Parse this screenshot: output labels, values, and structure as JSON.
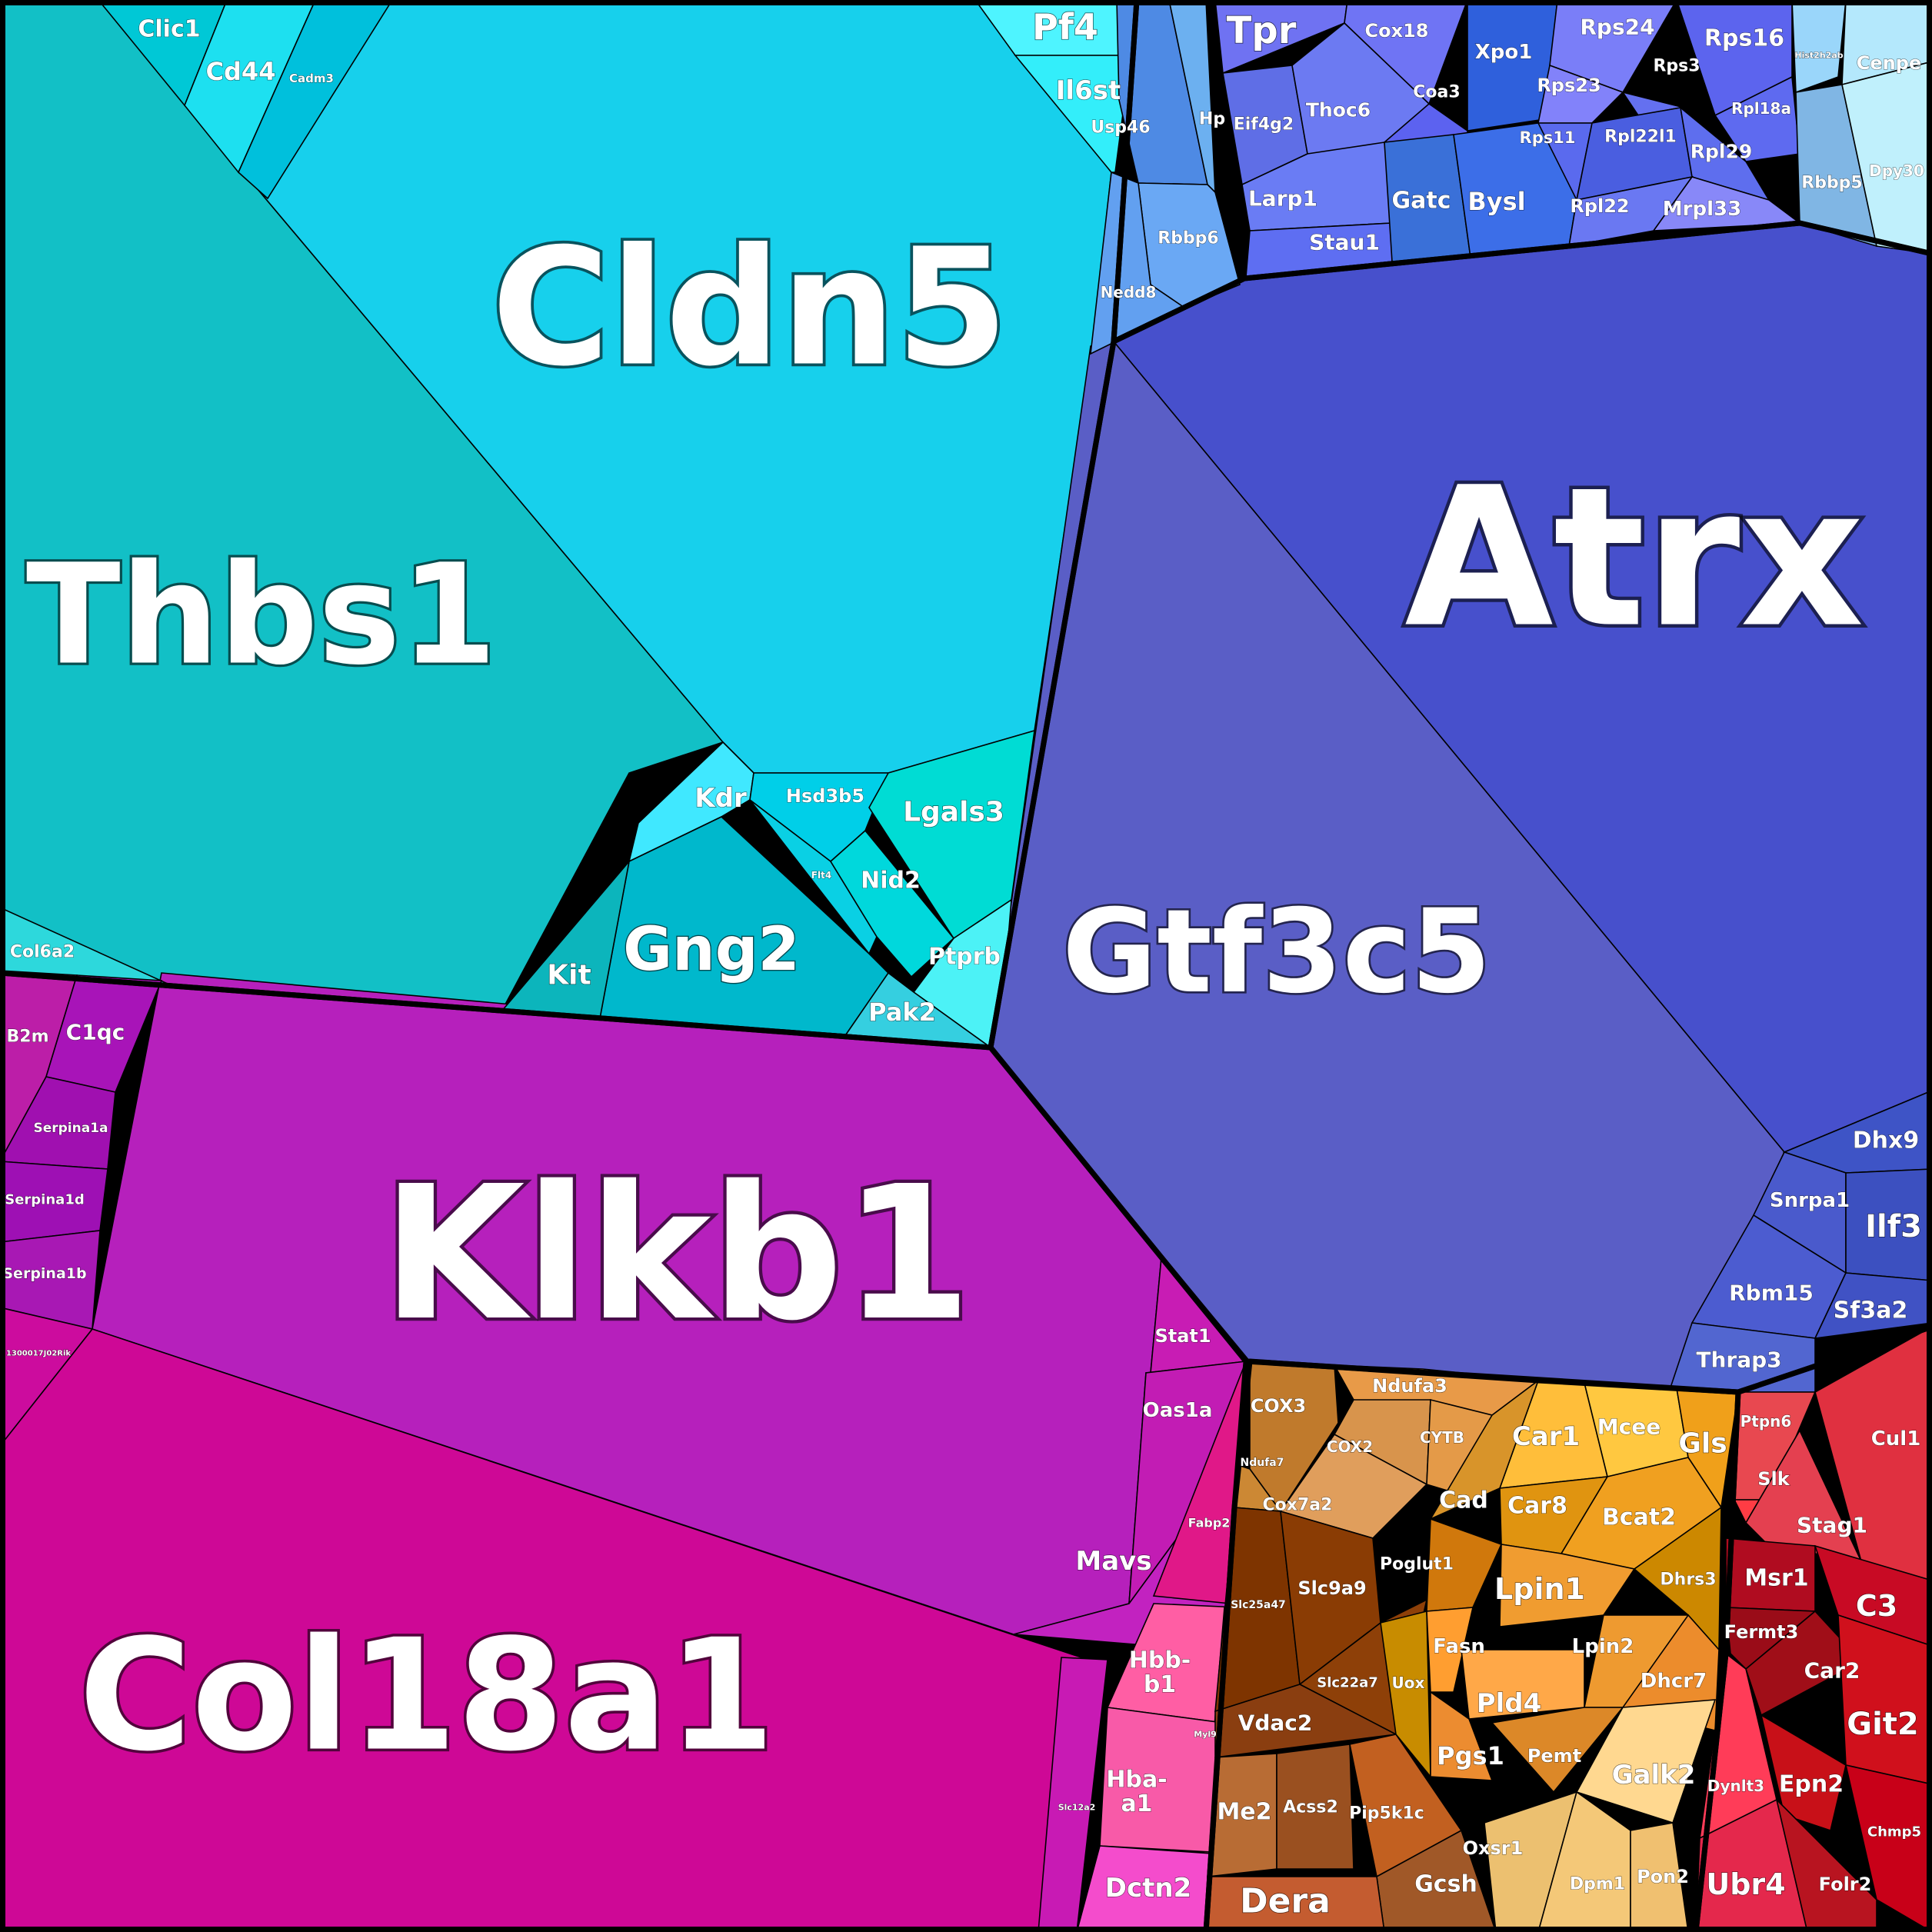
{
  "chart_data": {
    "type": "voronoi-treemap",
    "groups": [
      {
        "color": "#12c0c6",
        "cells": [
          {
            "label": "Thbs1",
            "color": "#12c0c6"
          },
          {
            "label": "Cldn5",
            "color": "#17d0ec"
          },
          {
            "label": "Clic1",
            "color": "#00c8d6"
          },
          {
            "label": "Cd44",
            "color": "#1de0f0"
          },
          {
            "label": "Cadm3",
            "color": "#00c0dc"
          },
          {
            "label": "Pf4",
            "color": "#4ef4ff"
          },
          {
            "label": "Il6st",
            "color": "#33eefa"
          },
          {
            "label": "Col6a2",
            "color": "#2dd8dc"
          },
          {
            "label": "Kdr",
            "color": "#40e8ff"
          },
          {
            "label": "Hsd3b5",
            "color": "#00cfe8"
          },
          {
            "label": "Lgals3",
            "color": "#00dcd4"
          },
          {
            "label": "Flt4",
            "color": "#0ad0e4"
          },
          {
            "label": "Nid2",
            "color": "#00d8dc"
          },
          {
            "label": "Gng2",
            "color": "#00b8cc"
          },
          {
            "label": "Kit",
            "color": "#0cb5bc"
          },
          {
            "label": "Ptprb",
            "color": "#4cf2f6"
          },
          {
            "label": "Pak2",
            "color": "#35cfe0"
          }
        ]
      },
      {
        "color": "#4750cc",
        "cells": [
          {
            "label": "Atrx",
            "color": "#4750cc"
          },
          {
            "label": "Gtf3c5",
            "color": "#5a5ec6"
          },
          {
            "label": "Usp46",
            "color": "#4e8ae4"
          },
          {
            "label": "Hp",
            "color": "#6cb0f0"
          },
          {
            "label": "Rbbp6",
            "color": "#6aa8f4"
          },
          {
            "label": "Nedd8",
            "color": "#62a0f0"
          },
          {
            "label": "Tpr",
            "color": "#6f72f2"
          },
          {
            "label": "Cox18",
            "color": "#6f74f4"
          },
          {
            "label": "Xpo1",
            "color": "#2f60dc"
          },
          {
            "label": "Rps24",
            "color": "#7a7ef8"
          },
          {
            "label": "Rps16",
            "color": "#5c64ee"
          },
          {
            "label": "Eif4g2",
            "color": "#5f6ee6"
          },
          {
            "label": "Thoc6",
            "color": "#6c7af2"
          },
          {
            "label": "Coa3",
            "color": "#5c62f0"
          },
          {
            "label": "Rps23",
            "color": "#8282fa"
          },
          {
            "label": "Rps3",
            "color": "#6470f0"
          },
          {
            "label": "Rpl18a",
            "color": "#5e6af0"
          },
          {
            "label": "Rps11",
            "color": "#5a6aee"
          },
          {
            "label": "Rpl22l1",
            "color": "#4a5ee0"
          },
          {
            "label": "Rpl29",
            "color": "#5e6eee"
          },
          {
            "label": "Larp1",
            "color": "#6a7cf4"
          },
          {
            "label": "Stau1",
            "color": "#5e6ef2"
          },
          {
            "label": "Gatc",
            "color": "#3a70d8"
          },
          {
            "label": "Bysl",
            "color": "#3c6ee8"
          },
          {
            "label": "Rpl22",
            "color": "#6a78f2"
          },
          {
            "label": "Mrpl33",
            "color": "#8888f8"
          },
          {
            "label": "Hist2h2ab",
            "color": "#9ad6fa"
          },
          {
            "label": "Cenpe",
            "color": "#b4e8fc"
          },
          {
            "label": "Rbbp5",
            "color": "#80b6e4"
          },
          {
            "label": "Dpy30",
            "color": "#c0f0fc"
          },
          {
            "label": "Dhx9",
            "color": "#3e54c6"
          },
          {
            "label": "Snrpa1",
            "color": "#4a5acc"
          },
          {
            "label": "Ilf3",
            "color": "#3c50c0"
          },
          {
            "label": "Rbm15",
            "color": "#4c5cd0"
          },
          {
            "label": "Sf3a2",
            "color": "#4052c4"
          },
          {
            "label": "Thrap3",
            "color": "#5266d0"
          }
        ]
      },
      {
        "color": "#b620bc",
        "cells": [
          {
            "label": "Klkb1",
            "color": "#b620bc"
          },
          {
            "label": "B2m",
            "color": "#bc1ea8"
          },
          {
            "label": "C1qc",
            "color": "#a814b8"
          },
          {
            "label": "Serpina1a",
            "color": "#a010b0"
          },
          {
            "label": "Serpina1d",
            "color": "#9e10b4"
          },
          {
            "label": "Serpina1b",
            "color": "#a818b4"
          },
          {
            "label": "1300017J02Rik",
            "color": "#cc0c9e"
          },
          {
            "label": "Col18a1",
            "color": "#ce0896"
          },
          {
            "label": "Stat1",
            "color": "#c81cb4"
          },
          {
            "label": "Oas1a",
            "color": "#c21cb4"
          },
          {
            "label": "Mavs",
            "color": "#c222c0"
          },
          {
            "label": "Fabp2",
            "color": "#e01888"
          },
          {
            "label": "Hbb-b1",
            "color": "#ff5ea4"
          },
          {
            "label": "Myl9",
            "color": "#e8489c"
          },
          {
            "label": "Hba-a1",
            "color": "#f85aa8"
          },
          {
            "label": "Slc12a2",
            "color": "#c81ab4"
          },
          {
            "label": "Dctn2",
            "color": "#f44ccc"
          }
        ]
      },
      {
        "color": "#e8962c",
        "cells": [
          {
            "label": "COX3",
            "color": "#c07a2c"
          },
          {
            "label": "Ndufa3",
            "color": "#e89a48"
          },
          {
            "label": "COX2",
            "color": "#d8944c"
          },
          {
            "label": "CYTB",
            "color": "#e49a48"
          },
          {
            "label": "Ndufa7",
            "color": "#cc8834"
          },
          {
            "label": "Cox7a2",
            "color": "#e09e5c"
          },
          {
            "label": "Slc25a47",
            "color": "#7e3400"
          },
          {
            "label": "Slc9a9",
            "color": "#8a3c04"
          },
          {
            "label": "Slc22a7",
            "color": "#8e4008"
          },
          {
            "label": "Vdac2",
            "color": "#8a3e10"
          },
          {
            "label": "Me2",
            "color": "#b86c34"
          },
          {
            "label": "Acss2",
            "color": "#9a5020"
          },
          {
            "label": "Pip5k1c",
            "color": "#c26020"
          },
          {
            "label": "Gcsh",
            "color": "#a05828"
          },
          {
            "label": "Dera",
            "color": "#c45c30"
          },
          {
            "label": "Car1",
            "color": "#ffbe3a"
          },
          {
            "label": "Mcee",
            "color": "#ffc840"
          },
          {
            "label": "Gls",
            "color": "#f0a01a"
          },
          {
            "label": "Cad",
            "color": "#d8942a"
          },
          {
            "label": "Car8",
            "color": "#e09410"
          },
          {
            "label": "Bcat2",
            "color": "#f0a020"
          },
          {
            "label": "Dhrs3",
            "color": "#cc8800"
          },
          {
            "label": "Poglut1",
            "color": "#d0780c"
          },
          {
            "label": "Lpin1",
            "color": "#f09c30"
          },
          {
            "label": "Uox",
            "color": "#c88c00"
          },
          {
            "label": "Fasn",
            "color": "#ff9e30"
          },
          {
            "label": "Lpin2",
            "color": "#ee9a30"
          },
          {
            "label": "Dhcr7",
            "color": "#ec8c2c"
          },
          {
            "label": "Pld4",
            "color": "#ffa848"
          },
          {
            "label": "Pgs1",
            "color": "#ec8c30"
          },
          {
            "label": "Pemt",
            "color": "#dc8828"
          },
          {
            "label": "Galk2",
            "color": "#ffd890"
          },
          {
            "label": "Oxsr1",
            "color": "#ecc070"
          },
          {
            "label": "Dpm1",
            "color": "#f4c878"
          },
          {
            "label": "Pon2",
            "color": "#f0c070"
          }
        ]
      },
      {
        "color": "#d8202e",
        "cells": [
          {
            "label": "Ptpn6",
            "color": "#e84850"
          },
          {
            "label": "Cul1",
            "color": "#e03040"
          },
          {
            "label": "Slk",
            "color": "#ff3c44"
          },
          {
            "label": "Stag1",
            "color": "#e44050"
          },
          {
            "label": "Msr1",
            "color": "#b00c20"
          },
          {
            "label": "C3",
            "color": "#c80a24"
          },
          {
            "label": "Fermt3",
            "color": "#9a0c18"
          },
          {
            "label": "Car2",
            "color": "#a00e18"
          },
          {
            "label": "Git2",
            "color": "#d0101c"
          },
          {
            "label": "Dynlt3",
            "color": "#ff3c58"
          },
          {
            "label": "Epn2",
            "color": "#c81018"
          },
          {
            "label": "Chmp5",
            "color": "#c80018"
          },
          {
            "label": "Ubr4",
            "color": "#e4284c"
          },
          {
            "label": "Folr2",
            "color": "#b81420"
          }
        ]
      }
    ]
  }
}
